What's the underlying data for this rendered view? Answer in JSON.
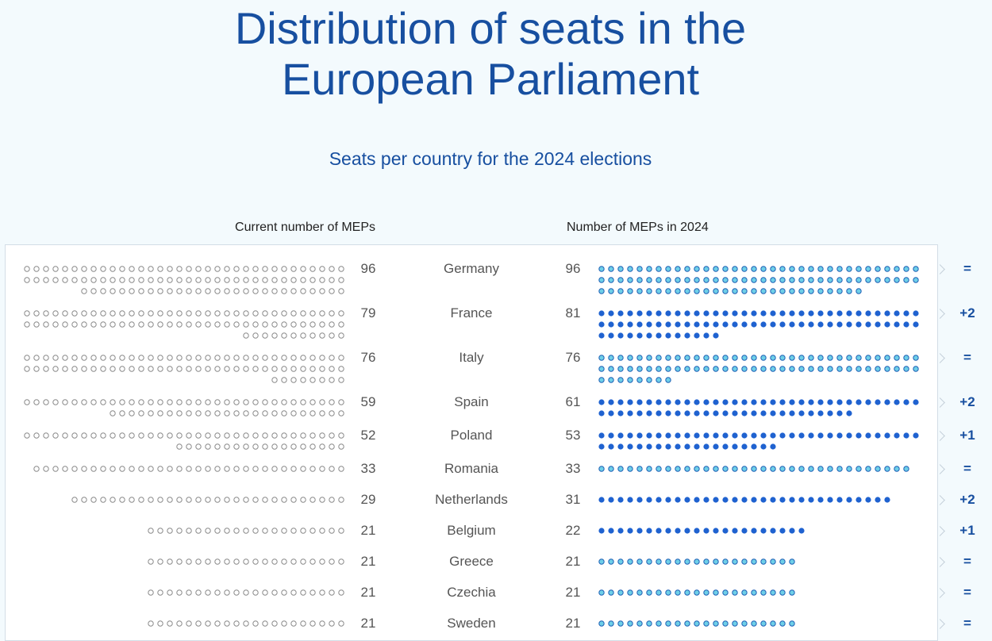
{
  "title_line1": "Distribution of seats in the",
  "title_line2": "European Parliament",
  "subtitle": "Seats per country for the 2024 elections",
  "header_current": "Current number of MEPs",
  "header_2024": "Number of MEPs in 2024",
  "colors": {
    "title": "#174fa0",
    "current_dot_stroke": "#8a8a8a",
    "unchanged_dot_fill": "#6ecfe8",
    "unchanged_dot_stroke": "#1d5fb5",
    "increased_dot_fill": "#1f62d0"
  },
  "chart_data": {
    "type": "dot-matrix",
    "title": "Distribution of seats in the European Parliament",
    "subtitle": "Seats per country for the 2024 elections",
    "series": [
      {
        "name": "Current number of MEPs",
        "values": [
          96,
          79,
          76,
          59,
          52,
          33,
          29,
          21,
          21,
          21,
          21
        ]
      },
      {
        "name": "Number of MEPs in 2024",
        "values": [
          96,
          81,
          76,
          61,
          53,
          33,
          31,
          22,
          21,
          21,
          21
        ]
      }
    ],
    "categories": [
      "Germany",
      "France",
      "Italy",
      "Spain",
      "Poland",
      "Romania",
      "Netherlands",
      "Belgium",
      "Greece",
      "Czechia",
      "Sweden"
    ],
    "rows": [
      {
        "country": "Germany",
        "current": 96,
        "new": 96,
        "change": "="
      },
      {
        "country": "France",
        "current": 79,
        "new": 81,
        "change": "+2"
      },
      {
        "country": "Italy",
        "current": 76,
        "new": 76,
        "change": "="
      },
      {
        "country": "Spain",
        "current": 59,
        "new": 61,
        "change": "+2"
      },
      {
        "country": "Poland",
        "current": 52,
        "new": 53,
        "change": "+1"
      },
      {
        "country": "Romania",
        "current": 33,
        "new": 33,
        "change": "="
      },
      {
        "country": "Netherlands",
        "current": 29,
        "new": 31,
        "change": "+2"
      },
      {
        "country": "Belgium",
        "current": 21,
        "new": 22,
        "change": "+1"
      },
      {
        "country": "Greece",
        "current": 21,
        "new": 21,
        "change": "="
      },
      {
        "country": "Czechia",
        "current": 21,
        "new": 21,
        "change": "="
      },
      {
        "country": "Sweden",
        "current": 21,
        "new": 21,
        "change": "="
      }
    ]
  }
}
